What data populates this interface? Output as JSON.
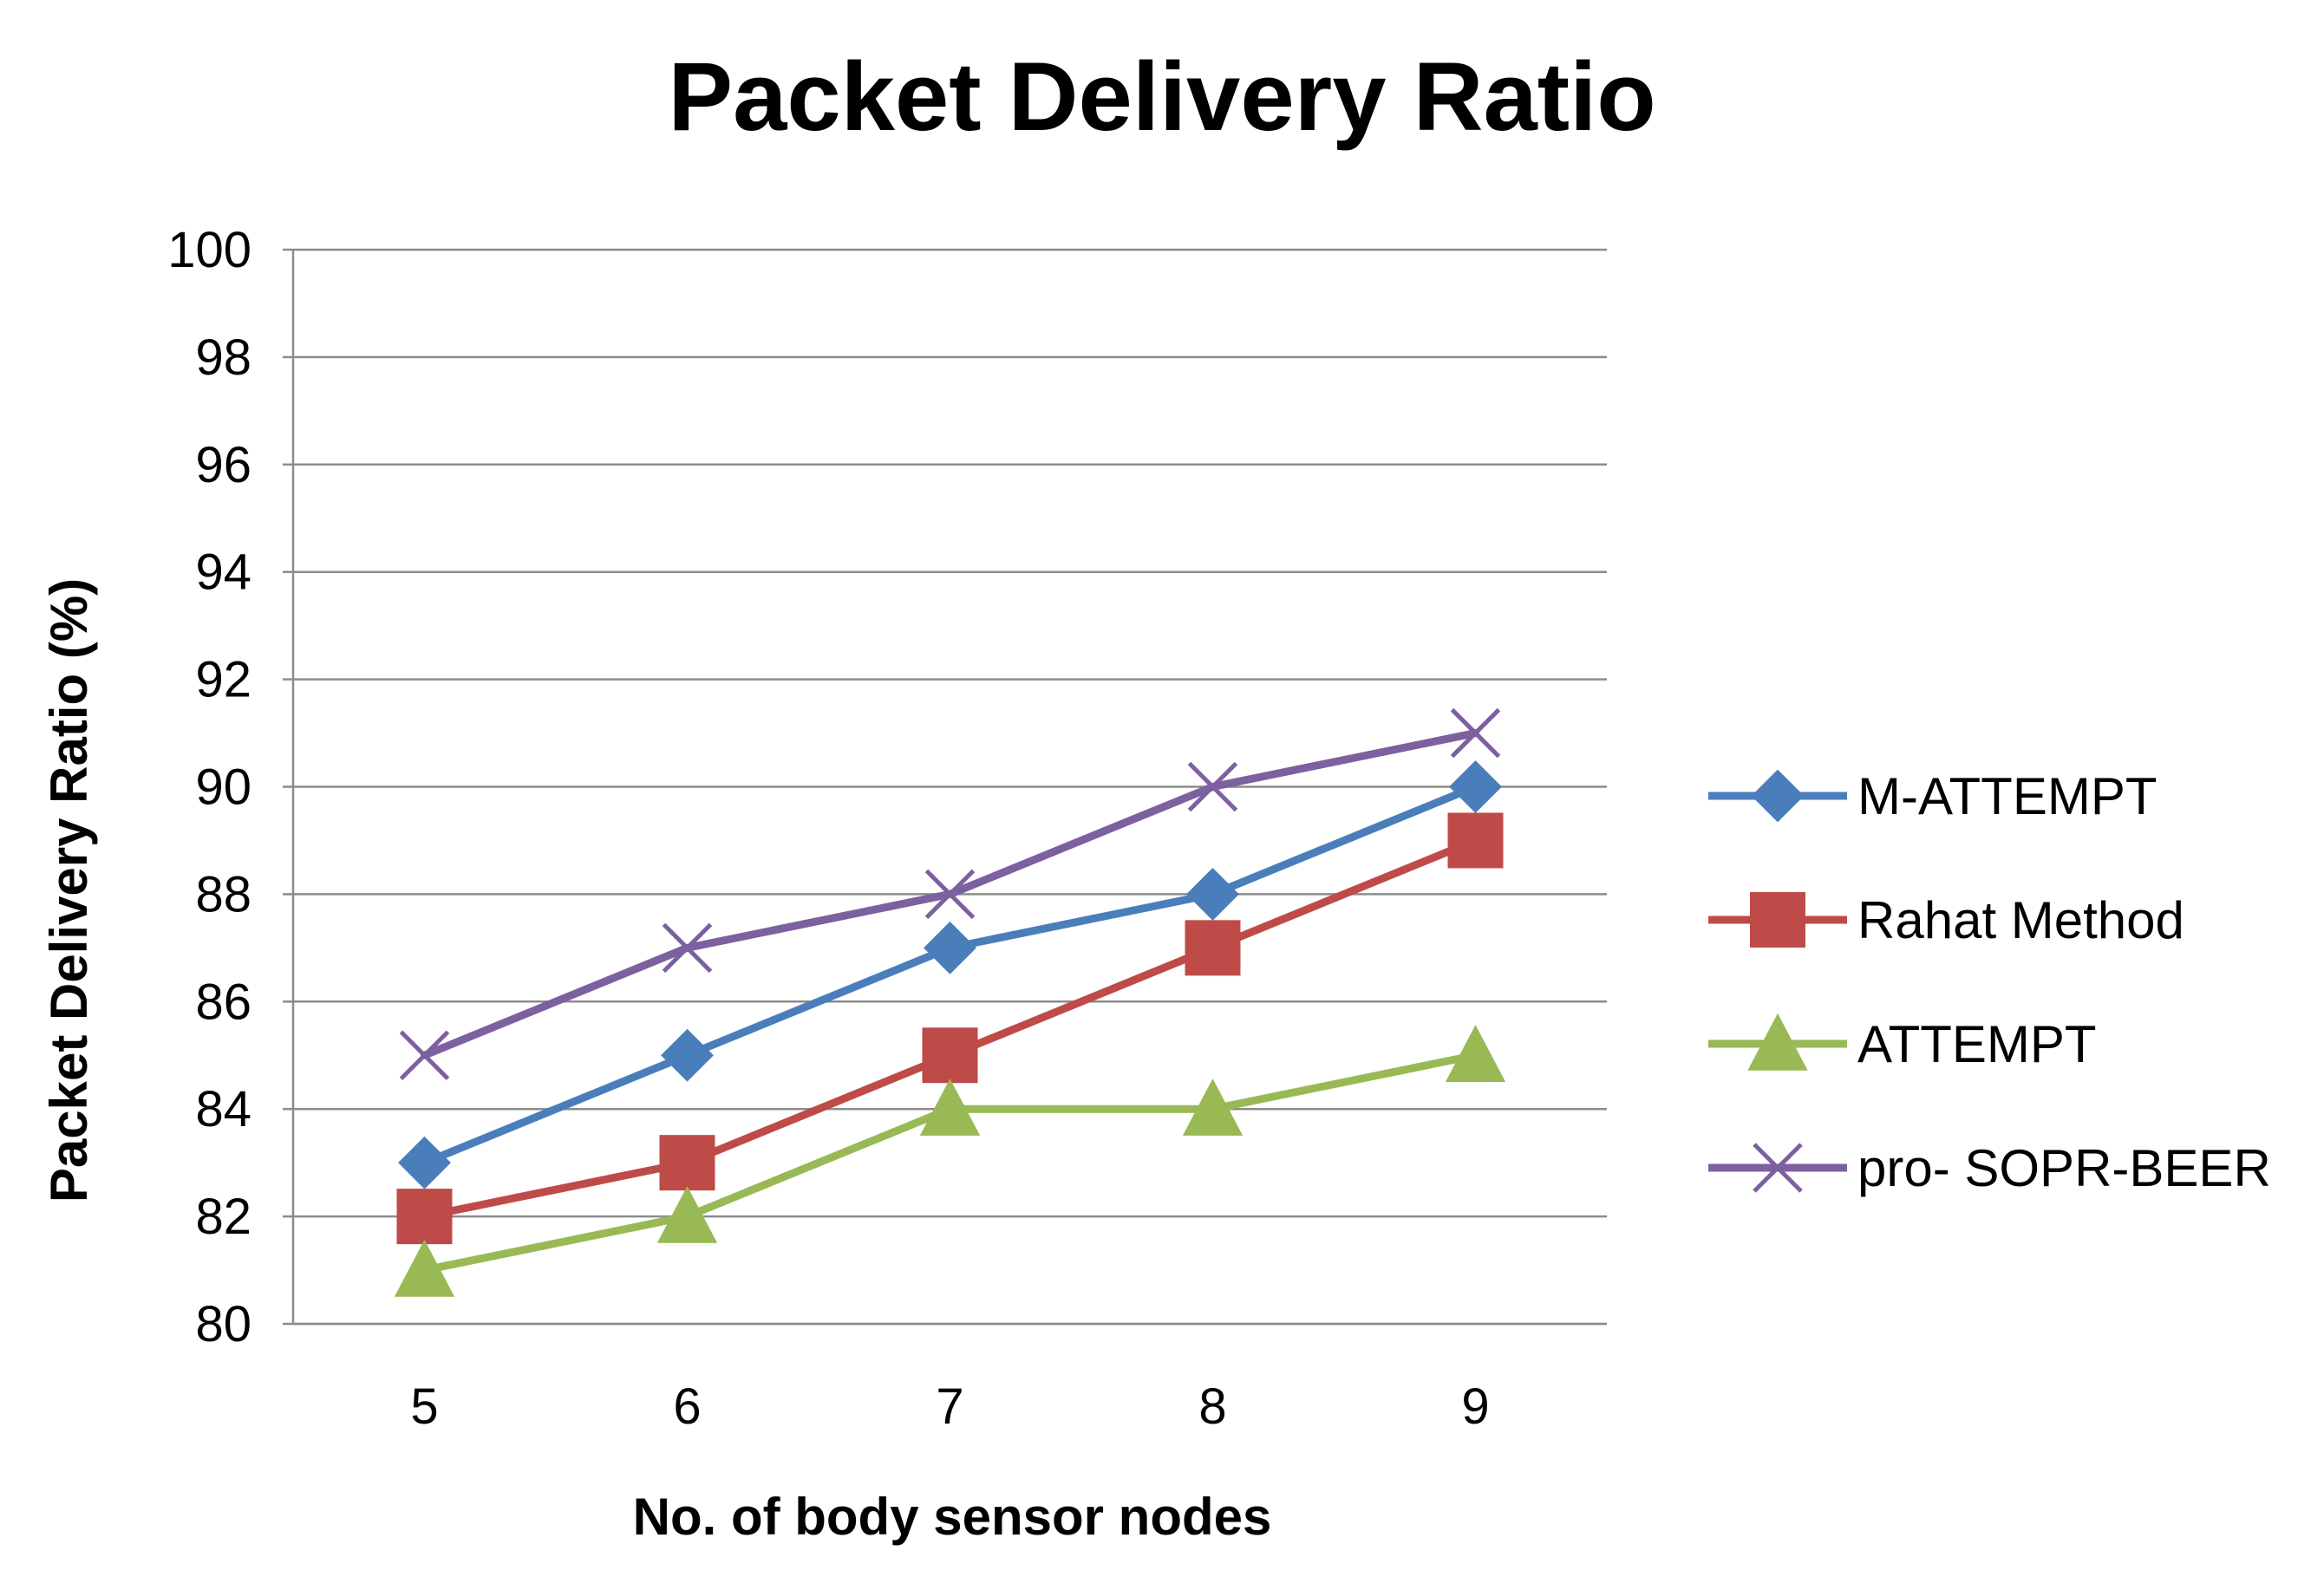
{
  "chart_data": {
    "type": "line",
    "title": "Packet Delivery Ratio",
    "xlabel": "No. of body sensor nodes",
    "ylabel": "Packet Delivery Ratio (%)",
    "x": [
      5,
      6,
      7,
      8,
      9
    ],
    "x_tick_labels": [
      "5",
      "6",
      "7",
      "8",
      "9"
    ],
    "y_tick_labels": [
      "80",
      "82",
      "84",
      "86",
      "88",
      "90",
      "92",
      "94",
      "96",
      "98",
      "100"
    ],
    "ylim": [
      80,
      100
    ],
    "y_step": 2,
    "grid": true,
    "legend_position": "right",
    "series": [
      {
        "name": "M-ATTEMPT",
        "values": [
          83,
          85,
          87,
          88,
          90
        ],
        "color": "#4a7ebb",
        "marker": "diamond"
      },
      {
        "name": "Rahat Method",
        "values": [
          82,
          83,
          85,
          87,
          89
        ],
        "color": "#be4b48",
        "marker": "square"
      },
      {
        "name": "ATTEMPT",
        "values": [
          81,
          82,
          84,
          84,
          85
        ],
        "color": "#98b954",
        "marker": "triangle"
      },
      {
        "name": "pro- SOPR-BEER",
        "values": [
          85,
          87,
          88,
          90,
          91
        ],
        "color": "#7d60a0",
        "marker": "x"
      }
    ]
  }
}
